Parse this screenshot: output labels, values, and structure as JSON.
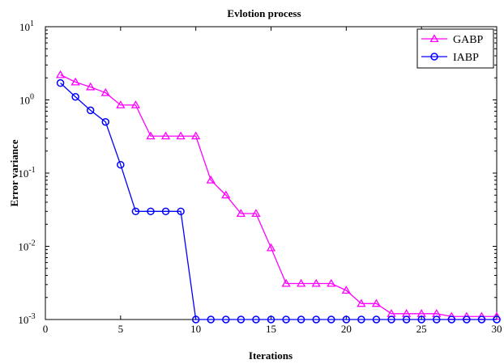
{
  "chart_data": {
    "type": "line",
    "title": "Evlotion process",
    "xlabel": "Iterations",
    "ylabel": "Error variance",
    "xlim": [
      0,
      30
    ],
    "ylim": [
      0.001,
      10
    ],
    "yscale": "log",
    "grid": false,
    "legend_position": "top-right",
    "x_ticks": [
      0,
      5,
      10,
      15,
      20,
      25,
      30
    ],
    "y_ticks": [
      {
        "value": 10,
        "base": "10",
        "exp": "1"
      },
      {
        "value": 1,
        "base": "10",
        "exp": "0"
      },
      {
        "value": 0.1,
        "base": "10",
        "exp": "-1"
      },
      {
        "value": 0.01,
        "base": "10",
        "exp": "-2"
      },
      {
        "value": 0.001,
        "base": "10",
        "exp": "-3"
      }
    ],
    "x": [
      1,
      2,
      3,
      4,
      5,
      6,
      7,
      8,
      9,
      10,
      11,
      12,
      13,
      14,
      15,
      16,
      17,
      18,
      19,
      20,
      21,
      22,
      23,
      24,
      25,
      26,
      27,
      28,
      29,
      30
    ],
    "series": [
      {
        "name": "GABP",
        "color": "#ff00ff",
        "marker": "triangle",
        "values": [
          2.2,
          1.75,
          1.5,
          1.25,
          0.85,
          0.85,
          0.32,
          0.32,
          0.32,
          0.32,
          0.08,
          0.05,
          0.028,
          0.028,
          0.0095,
          0.0031,
          0.0031,
          0.0031,
          0.0031,
          0.0025,
          0.00165,
          0.00165,
          0.0012,
          0.0012,
          0.0012,
          0.0012,
          0.0011,
          0.0011,
          0.0011,
          0.0011
        ]
      },
      {
        "name": "IABP",
        "color": "#0000ff",
        "marker": "circle",
        "values": [
          1.7,
          1.1,
          0.72,
          0.5,
          0.13,
          0.03,
          0.03,
          0.03,
          0.03,
          0.001,
          0.001,
          0.001,
          0.001,
          0.001,
          0.001,
          0.001,
          0.001,
          0.001,
          0.001,
          0.001,
          0.001,
          0.001,
          0.001,
          0.001,
          0.001,
          0.001,
          0.001,
          0.001,
          0.001,
          0.001
        ]
      }
    ]
  }
}
